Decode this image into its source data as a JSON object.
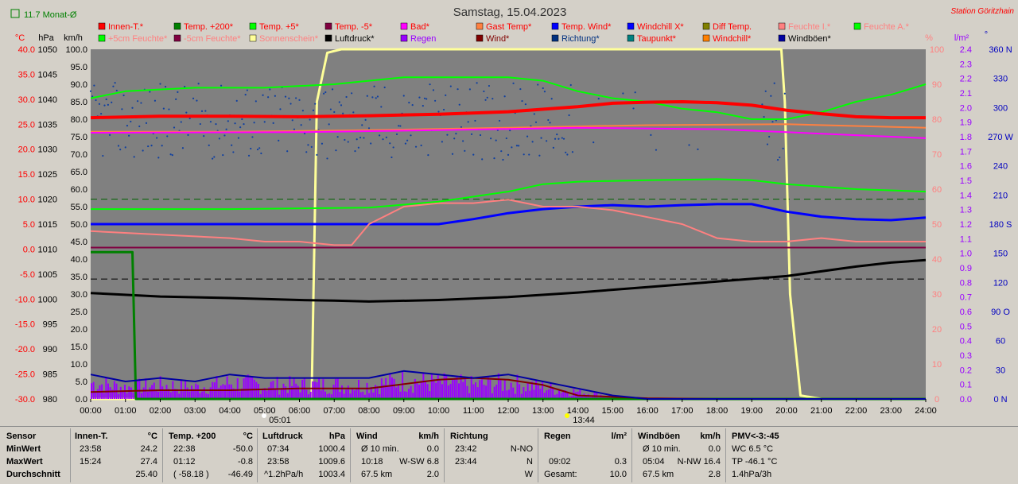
{
  "colors": {
    "plot_bg": "#808080",
    "page_bg": "#d4d0c8",
    "temp_axis": "#ff0000",
    "pct_axis": "#ff8080",
    "rain_axis": "#9900ff",
    "dir_axis": "#0000c0",
    "sunshine": "#ffff99",
    "inside_temp": "#ff0000",
    "temp200": "#008000",
    "temp5": "#00ff00",
    "gast": "#ff8040",
    "tempwind": "#0000ff",
    "feuchte_i": "#ff8080",
    "feuchte_a": "#00ff00",
    "luftdruck": "#000000",
    "bad": "#ff00ff",
    "wind": "#800000",
    "windboeen": "#0000a0",
    "regen": "#9900ff",
    "richtung": "#003080"
  },
  "header": {
    "monthly_avg": "11.7 Monat-Ø",
    "title": "Samstag, 15.04.2023",
    "station": "Station Göritzhain"
  },
  "legend": [
    {
      "label": "Innen-T.*",
      "color": "#ff0000",
      "text_color": "#ff0000"
    },
    {
      "label": "Temp. +200*",
      "color": "#008000",
      "text_color": "#ff0000"
    },
    {
      "label": "Temp. +5*",
      "color": "#00ff00",
      "text_color": "#ff0000"
    },
    {
      "label": "Temp. -5*",
      "color": "#800040",
      "text_color": "#ff0000"
    },
    {
      "label": "Bad*",
      "color": "#ff00ff",
      "text_color": "#ff0000"
    },
    {
      "label": "Gast Temp*",
      "color": "#ff8040",
      "text_color": "#ff0000"
    },
    {
      "label": "Temp. Wind*",
      "color": "#0000ff",
      "text_color": "#ff0000"
    },
    {
      "label": "Windchill X*",
      "color": "#0000ff",
      "text_color": "#ff0000"
    },
    {
      "label": "Diff Temp.",
      "color": "#808000",
      "text_color": "#ff0000"
    },
    {
      "label": "Feuchte I.*",
      "color": "#ff8080",
      "text_color": "#ff8080"
    },
    {
      "label": "Feuchte A.*",
      "color": "#00ff00",
      "text_color": "#ff8080"
    },
    {
      "label": "+5cm Feuchte*",
      "color": "#00ff00",
      "text_color": "#ff8080"
    },
    {
      "label": "-5cm Feuchte*",
      "color": "#800040",
      "text_color": "#ff8080"
    },
    {
      "label": "Sonnenschein*",
      "color": "#ffff99",
      "text_color": "#ff8080"
    },
    {
      "label": "Luftdruck*",
      "color": "#000000",
      "text_color": "#000000"
    },
    {
      "label": "Regen",
      "color": "#9900ff",
      "text_color": "#9900ff"
    },
    {
      "label": "Wind*",
      "color": "#800000",
      "text_color": "#800000"
    },
    {
      "label": "Richtung*",
      "color": "#003080",
      "text_color": "#003080"
    },
    {
      "label": "Taupunkt*",
      "color": "#008080",
      "text_color": "#ff0000"
    },
    {
      "label": "Windchill*",
      "color": "#ff8000",
      "text_color": "#ff0000"
    },
    {
      "label": "Windböen*",
      "color": "#0000a0",
      "text_color": "#000000"
    }
  ],
  "axis_units": {
    "temp": "°C",
    "pressure": "hPa",
    "wind": "km/h",
    "pct": "%",
    "rain": "l/m²",
    "dir": "°"
  },
  "markers": {
    "sunrise": "05:01",
    "sunset": "13:44"
  },
  "chart_data": {
    "type": "line",
    "title": "Samstag, 15.04.2023",
    "x_unit": "time of day (hours)",
    "xlim": [
      0,
      24
    ],
    "x_ticks": [
      "00:00",
      "01:00",
      "02:00",
      "03:00",
      "04:00",
      "05:00",
      "06:00",
      "07:00",
      "08:00",
      "09:00",
      "10:00",
      "11:00",
      "12:00",
      "13:00",
      "14:00",
      "15:00",
      "16:00",
      "17:00",
      "18:00",
      "19:00",
      "20:00",
      "21:00",
      "22:00",
      "23:00",
      "24:00"
    ],
    "axes": {
      "temp": {
        "label": "°C",
        "range": [
          -30,
          40
        ],
        "ticks": [
          "40.0",
          "35.0",
          "30.0",
          "25.0",
          "20.0",
          "15.0",
          "10.0",
          "5.0",
          "0.0",
          "-5.0",
          "-10.0",
          "-15.0",
          "-20.0",
          "-25.0",
          "-30.0"
        ]
      },
      "pressure": {
        "label": "hPa",
        "range": [
          980,
          1050
        ],
        "ticks": [
          "1050",
          "1045",
          "1040",
          "1035",
          "1030",
          "1025",
          "1020",
          "1015",
          "1010",
          "1005",
          "1000",
          "995",
          "990",
          "985",
          "980"
        ]
      },
      "wind": {
        "label": "km/h",
        "range": [
          0,
          100
        ],
        "ticks": [
          "100.0",
          "95.0",
          "90.0",
          "85.0",
          "80.0",
          "75.0",
          "70.0",
          "65.0",
          "60.0",
          "55.0",
          "50.0",
          "45.0",
          "40.0",
          "35.0",
          "30.0",
          "25.0",
          "20.0",
          "15.0",
          "10.0",
          "5.0",
          "0.0"
        ]
      },
      "pct": {
        "label": "%",
        "range": [
          0,
          100
        ],
        "ticks": [
          "100",
          "90",
          "80",
          "70",
          "60",
          "50",
          "40",
          "30",
          "20",
          "10",
          "0"
        ]
      },
      "rain": {
        "label": "l/m²",
        "range": [
          0,
          2.4
        ],
        "ticks": [
          "2.4",
          "2.3",
          "2.2",
          "2.1",
          "2.0",
          "1.9",
          "1.8",
          "1.7",
          "1.6",
          "1.5",
          "1.4",
          "1.3",
          "1.2",
          "1.1",
          "1.0",
          "0.9",
          "0.8",
          "0.7",
          "0.6",
          "0.5",
          "0.4",
          "0.3",
          "0.2",
          "0.1",
          "0.0"
        ]
      },
      "dir": {
        "label": "°",
        "range": [
          0,
          360
        ],
        "ticks": [
          "360 N",
          "330",
          "300",
          "270 W",
          "240",
          "210",
          "180 S",
          "150",
          "120",
          "90 O",
          "60",
          "30",
          "0 N"
        ]
      }
    },
    "series": [
      {
        "name": "Sonnenschein*",
        "axis": "pct",
        "x": [
          0,
          6.35,
          6.5,
          6.8,
          7.2,
          19.85,
          19.95,
          20.1,
          20.4,
          21,
          24
        ],
        "y": [
          0,
          0,
          85,
          99,
          100,
          100,
          85,
          30,
          1,
          0,
          0
        ]
      },
      {
        "name": "Feuchte A.*",
        "axis": "pct",
        "x": [
          0,
          1,
          3,
          5,
          7,
          8,
          9,
          10,
          11,
          12,
          13,
          14,
          15,
          16,
          17,
          18,
          19,
          20,
          21,
          22,
          23,
          24
        ],
        "y": [
          86,
          88,
          89,
          89,
          90,
          91,
          92,
          92,
          92,
          92,
          91,
          88,
          86,
          85,
          83,
          82,
          80,
          80,
          82,
          85,
          87,
          90
        ]
      },
      {
        "name": "Innen-T.*",
        "axis": "temp",
        "x": [
          0,
          2,
          4,
          6,
          8,
          10,
          12,
          14,
          15,
          16,
          17,
          18,
          19,
          20,
          21,
          22,
          23,
          24
        ],
        "y": [
          26.3,
          26.6,
          26.6,
          26.5,
          26.7,
          27.0,
          27.5,
          28.5,
          29.2,
          29.4,
          29.5,
          29.3,
          28.8,
          27.8,
          27.1,
          26.5,
          26.3,
          26.3
        ]
      },
      {
        "name": "Gast Temp*",
        "axis": "temp",
        "x": [
          0,
          4,
          8,
          12,
          16,
          20,
          24
        ],
        "y": [
          23.5,
          23.5,
          23.8,
          24.3,
          24.8,
          25.0,
          24.3
        ]
      },
      {
        "name": "Bad*",
        "axis": "temp",
        "x": [
          0,
          6,
          10,
          14,
          18,
          20,
          22,
          24
        ],
        "y": [
          23.3,
          23.4,
          23.8,
          24.3,
          24.0,
          23.4,
          22.8,
          22.2
        ]
      },
      {
        "name": "Temp. Wind*",
        "axis": "temp",
        "x": [
          0,
          2,
          4,
          6,
          8,
          10,
          11,
          12,
          13,
          14,
          15,
          16,
          17,
          18,
          19,
          20,
          21,
          22,
          23,
          24
        ],
        "y": [
          5.0,
          5.0,
          5.0,
          5.0,
          5.0,
          5.0,
          6.0,
          7.2,
          8.0,
          8.5,
          8.8,
          8.5,
          8.8,
          9.0,
          9.0,
          7.5,
          6.5,
          6.0,
          5.8,
          6.3
        ]
      },
      {
        "name": "Feuchte I.*",
        "axis": "pct",
        "x": [
          0,
          2,
          4,
          5,
          6,
          7,
          7.5,
          8,
          9,
          10,
          11,
          12,
          13,
          14,
          15,
          16,
          17,
          18,
          19,
          20,
          21,
          22,
          23,
          24
        ],
        "y": [
          48,
          47,
          46,
          45,
          45,
          44,
          44,
          50,
          55,
          56,
          56,
          57,
          55,
          55,
          54,
          52,
          50,
          46,
          45,
          45,
          46,
          45,
          45,
          45
        ]
      },
      {
        "name": "Temp. +5*",
        "axis": "temp",
        "x": [
          0,
          4,
          8,
          10,
          12,
          13,
          14,
          16,
          18,
          19,
          20,
          22,
          24
        ],
        "y": [
          8,
          8,
          8.3,
          9.5,
          11.5,
          13,
          13.5,
          13.8,
          14,
          13.8,
          13,
          12,
          11.5
        ]
      },
      {
        "name": "Luftdruck*",
        "axis": "pressure",
        "x": [
          0,
          2,
          4,
          6,
          7,
          8,
          10,
          12,
          14,
          16,
          18,
          20,
          22,
          23,
          24
        ],
        "y": [
          1001.2,
          1000.5,
          1000.2,
          999.8,
          999.7,
          999.5,
          999.8,
          1000.4,
          1001.3,
          1002.4,
          1003.5,
          1004.6,
          1006.5,
          1007.3,
          1007.8
        ]
      },
      {
        "name": "Temp. -5*",
        "axis": "temp",
        "x": [
          0,
          24
        ],
        "y": [
          0.3,
          0.3
        ]
      },
      {
        "name": "Temp. +200*",
        "axis": "temp",
        "x": [
          0,
          1.2,
          1.3,
          24
        ],
        "y": [
          -0.6,
          -0.6,
          -30,
          -30
        ]
      },
      {
        "name": "Wind*",
        "axis": "wind",
        "x": [
          0,
          2,
          4,
          6,
          8,
          10,
          11,
          12,
          13,
          13.5,
          14,
          16,
          18,
          20,
          24
        ],
        "y": [
          2,
          2.5,
          2.5,
          3,
          3,
          5.5,
          6,
          5.5,
          4,
          2.5,
          1,
          0.2,
          0,
          0,
          0
        ]
      },
      {
        "name": "Windböen*",
        "axis": "wind",
        "x": [
          0,
          1,
          2,
          3,
          4,
          5,
          6,
          8,
          9,
          10,
          11,
          12,
          13,
          14,
          15,
          15.5,
          16,
          18,
          20,
          24
        ],
        "y": [
          7,
          5,
          6,
          5,
          7,
          6,
          6,
          6,
          8,
          7,
          6,
          7,
          5,
          3,
          1,
          0.5,
          0,
          0,
          0,
          0
        ]
      }
    ],
    "reference_lines": [
      {
        "axis": "temp",
        "value": 10.0,
        "style": "dashed",
        "color": "#006000"
      },
      {
        "axis": "pressure",
        "value": 1004.0,
        "style": "dashed",
        "color": "#000000"
      }
    ]
  },
  "stats": {
    "sensor": {
      "header": "Sensor",
      "rows": [
        "MinWert",
        "MaxWert",
        "Durchschnitt"
      ]
    },
    "innen": {
      "header": "Innen-T.",
      "unit": "°C",
      "rows": [
        [
          "23:58",
          "24.2"
        ],
        [
          "15:24",
          "27.4"
        ],
        [
          "",
          "25.40"
        ]
      ]
    },
    "temp200": {
      "header": "Temp. +200",
      "unit": "°C",
      "rows": [
        [
          "22:38",
          "-50.0"
        ],
        [
          "01:12",
          "-0.8"
        ],
        [
          "( -58.18 )",
          "-46.49"
        ]
      ]
    },
    "luftdruck": {
      "header": "Luftdruck",
      "unit": "hPa",
      "rows": [
        [
          "07:34",
          "1000.4"
        ],
        [
          "23:58",
          "1009.6"
        ],
        [
          "^1.2hPa/h",
          "1003.4"
        ]
      ]
    },
    "wind": {
      "header": "Wind",
      "unit": "km/h",
      "rows": [
        [
          "Ø 10 min.",
          "0.0"
        ],
        [
          "10:18",
          "W-SW 6.8"
        ],
        [
          "67.5 km",
          "2.0"
        ]
      ]
    },
    "richtung": {
      "header": "Richtung",
      "unit": "",
      "rows": [
        [
          "23:42",
          "N-NO"
        ],
        [
          "23:44",
          "N"
        ],
        [
          "",
          "W"
        ]
      ]
    },
    "regen": {
      "header": "Regen",
      "unit": "l/m²",
      "rows": [
        [
          "",
          ""
        ],
        [
          "09:02",
          "0.3"
        ],
        [
          "Gesamt:",
          "10.0"
        ]
      ]
    },
    "windboeen": {
      "header": "Windböen",
      "unit": "km/h",
      "rows": [
        [
          "Ø 10 min.",
          "0.0"
        ],
        [
          "05:04",
          "N-NW 16.4"
        ],
        [
          "67.5 km",
          "2.8"
        ]
      ]
    },
    "pmv": {
      "header": "PMV<-3:-45",
      "rows": [
        "WC 6.5 °C",
        "TP -46.1 °C",
        "1.4hPa/3h"
      ]
    }
  }
}
